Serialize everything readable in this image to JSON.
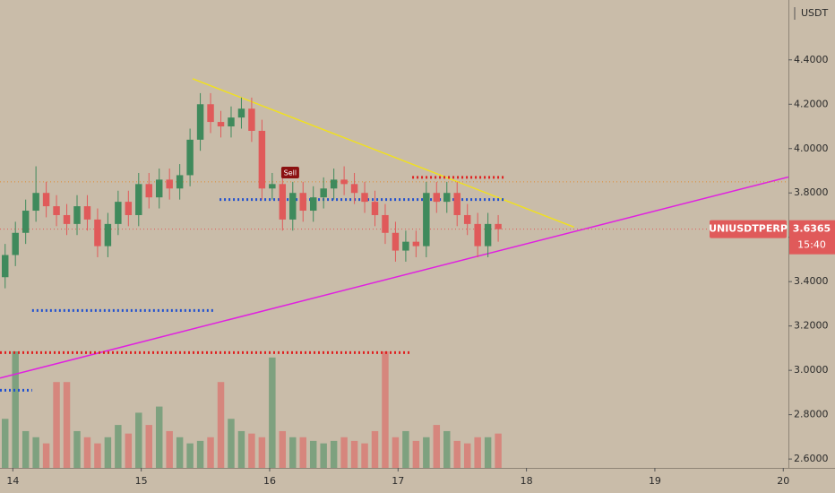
{
  "chart_data": {
    "type": "candlestick",
    "currency": "USDT",
    "symbol": "UNIUSDTPERP",
    "last_price": 3.6365,
    "countdown": "15:40",
    "x": [
      13.94,
      14.02,
      14.1,
      14.18,
      14.26,
      14.34,
      14.42,
      14.5,
      14.58,
      14.66,
      14.74,
      14.82,
      14.9,
      14.98,
      15.06,
      15.14,
      15.22,
      15.3,
      15.38,
      15.46,
      15.54,
      15.62,
      15.7,
      15.78,
      15.86,
      15.94,
      16.02,
      16.1,
      16.18,
      16.26,
      16.34,
      16.42,
      16.5,
      16.58,
      16.66,
      16.74,
      16.82,
      16.9,
      16.98,
      17.06,
      17.14,
      17.22,
      17.3,
      17.38,
      17.46,
      17.54,
      17.62,
      17.7,
      17.78
    ],
    "open": [
      3.42,
      3.52,
      3.62,
      3.72,
      3.8,
      3.74,
      3.7,
      3.66,
      3.74,
      3.68,
      3.56,
      3.66,
      3.76,
      3.7,
      3.84,
      3.78,
      3.86,
      3.82,
      3.88,
      4.04,
      4.2,
      4.12,
      4.1,
      4.14,
      4.18,
      4.08,
      3.82,
      3.84,
      3.68,
      3.8,
      3.72,
      3.78,
      3.82,
      3.86,
      3.84,
      3.8,
      3.76,
      3.7,
      3.62,
      3.54,
      3.58,
      3.56,
      3.8,
      3.76,
      3.8,
      3.7,
      3.66,
      3.56,
      3.66
    ],
    "high": [
      3.57,
      3.67,
      3.77,
      3.92,
      3.85,
      3.79,
      3.75,
      3.79,
      3.79,
      3.73,
      3.71,
      3.81,
      3.81,
      3.89,
      3.89,
      3.91,
      3.91,
      3.93,
      4.09,
      4.25,
      4.25,
      4.17,
      4.19,
      4.23,
      4.23,
      4.13,
      3.89,
      3.89,
      3.85,
      3.85,
      3.83,
      3.87,
      3.91,
      3.92,
      3.89,
      3.85,
      3.81,
      3.75,
      3.67,
      3.63,
      3.63,
      3.85,
      3.85,
      3.85,
      3.85,
      3.75,
      3.71,
      3.71,
      3.7
    ],
    "low": [
      3.37,
      3.47,
      3.57,
      3.67,
      3.69,
      3.65,
      3.61,
      3.61,
      3.63,
      3.51,
      3.51,
      3.61,
      3.65,
      3.65,
      3.73,
      3.73,
      3.77,
      3.77,
      3.83,
      3.99,
      4.07,
      4.05,
      4.05,
      4.09,
      4.03,
      3.77,
      3.77,
      3.63,
      3.63,
      3.67,
      3.67,
      3.73,
      3.77,
      3.79,
      3.75,
      3.71,
      3.65,
      3.57,
      3.49,
      3.49,
      3.51,
      3.51,
      3.71,
      3.71,
      3.65,
      3.61,
      3.51,
      3.51,
      3.58
    ],
    "close": [
      3.52,
      3.62,
      3.72,
      3.8,
      3.74,
      3.7,
      3.66,
      3.74,
      3.68,
      3.56,
      3.66,
      3.76,
      3.7,
      3.84,
      3.78,
      3.86,
      3.82,
      3.88,
      4.04,
      4.2,
      4.12,
      4.1,
      4.14,
      4.18,
      4.08,
      3.82,
      3.84,
      3.68,
      3.8,
      3.72,
      3.78,
      3.82,
      3.86,
      3.84,
      3.8,
      3.76,
      3.7,
      3.62,
      3.54,
      3.58,
      3.56,
      3.8,
      3.76,
      3.8,
      3.7,
      3.66,
      3.56,
      3.66,
      3.6365
    ],
    "volume": [
      40,
      95,
      30,
      25,
      20,
      70,
      70,
      30,
      25,
      20,
      25,
      35,
      28,
      45,
      35,
      50,
      30,
      25,
      20,
      22,
      25,
      70,
      40,
      30,
      28,
      25,
      90,
      30,
      25,
      25,
      22,
      20,
      22,
      25,
      22,
      20,
      30,
      95,
      25,
      30,
      22,
      25,
      35,
      30,
      22,
      20,
      25,
      25,
      28
    ],
    "up_color": "#3f8a5c",
    "down_color": "#e05a5a",
    "xlim": [
      13.9,
      20.04
    ],
    "ylim": [
      2.56,
      4.67
    ],
    "xticks": [
      14,
      15,
      16,
      17,
      18,
      19,
      20
    ],
    "yticks": [
      {
        "value": 2.6,
        "label": "2.6000"
      },
      {
        "value": 2.8,
        "label": "2.8000"
      },
      {
        "value": 3.0,
        "label": "3.0000"
      },
      {
        "value": 3.2,
        "label": "3.2000"
      },
      {
        "value": 3.4,
        "label": "3.4000"
      },
      {
        "value": 3.6,
        "label": "3.6000"
      },
      {
        "value": 3.8,
        "label": "3.8000"
      },
      {
        "value": 4.0,
        "label": "4.0000"
      },
      {
        "value": 4.2,
        "label": "4.2000"
      },
      {
        "value": 4.4,
        "label": "4.4000"
      }
    ],
    "lines": [
      {
        "color": "#f0e020",
        "style": "solid",
        "x": [
          15.4,
          18.37
        ],
        "y": [
          4.315,
          3.646
        ]
      },
      {
        "color": "#e020e0",
        "style": "solid",
        "x": [
          13.9,
          20.04
        ],
        "y": [
          2.965,
          3.872
        ]
      },
      {
        "color": "#e08a30",
        "style": "dotted-thin",
        "x": [
          13.9,
          20.04
        ],
        "y": [
          3.85,
          3.85
        ]
      },
      {
        "color": "#e05a5a",
        "style": "dotted-thin",
        "x": [
          13.9,
          20.04
        ],
        "y": [
          3.6365,
          3.6365
        ]
      },
      {
        "color": "#2050d0",
        "style": "dotted",
        "x": [
          15.61,
          17.84
        ],
        "y": [
          3.77,
          3.77
        ]
      },
      {
        "color": "#e02020",
        "style": "dotted",
        "x": [
          17.11,
          17.84
        ],
        "y": [
          3.87,
          3.87
        ]
      },
      {
        "color": "#2050d0",
        "style": "dotted",
        "x": [
          14.15,
          15.58
        ],
        "y": [
          3.27,
          3.27
        ]
      },
      {
        "color": "#e02020",
        "style": "dotted",
        "x": [
          13.9,
          17.1
        ],
        "y": [
          3.08,
          3.08
        ]
      },
      {
        "color": "#2050d0",
        "style": "dotted",
        "x": [
          13.9,
          14.15
        ],
        "y": [
          2.91,
          2.91
        ]
      }
    ],
    "sell_marker": {
      "label": "Sell",
      "x": 16.16,
      "y": 3.89
    }
  }
}
